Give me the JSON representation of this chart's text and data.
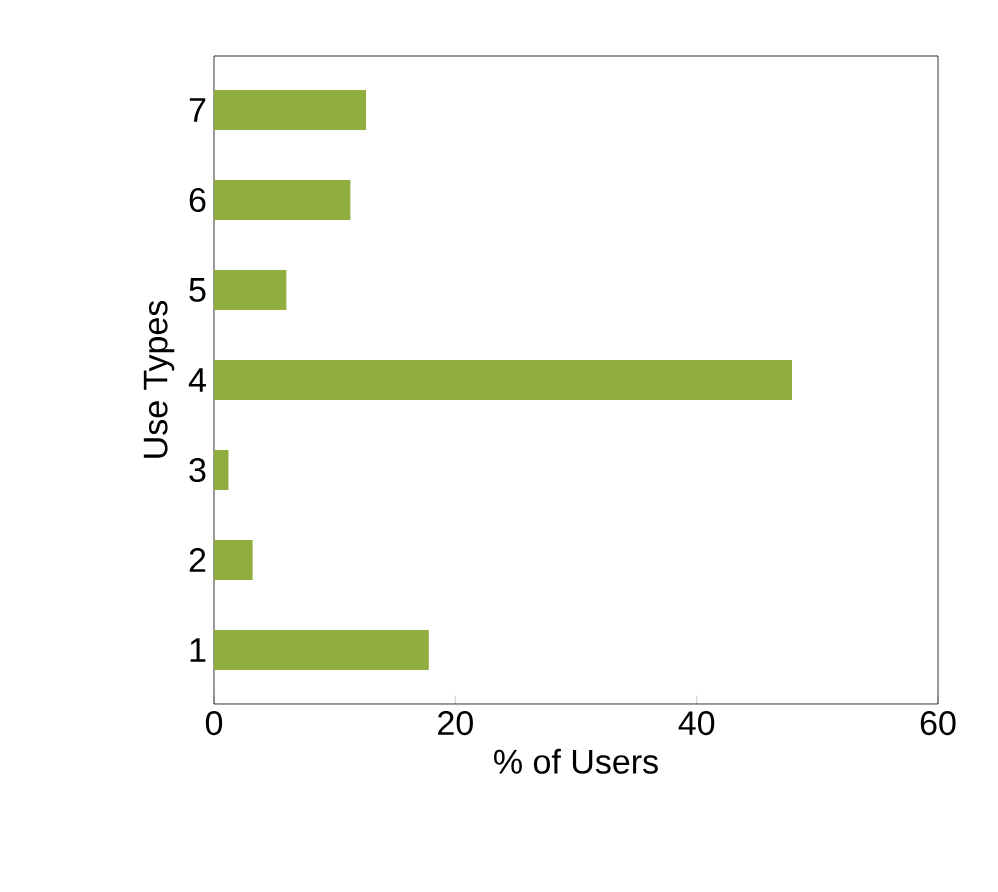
{
  "chart_data": {
    "type": "bar",
    "orientation": "horizontal",
    "xlabel": "% of Users",
    "ylabel": "Use Types",
    "categories": [
      "7",
      "6",
      "5",
      "4",
      "3",
      "2",
      "1"
    ],
    "values": [
      12.6,
      11.3,
      6.0,
      47.9,
      1.2,
      3.2,
      17.8
    ],
    "color": "#8fae3e",
    "xlim": [
      0,
      60
    ],
    "xticks": [
      0,
      20,
      40,
      60
    ]
  }
}
